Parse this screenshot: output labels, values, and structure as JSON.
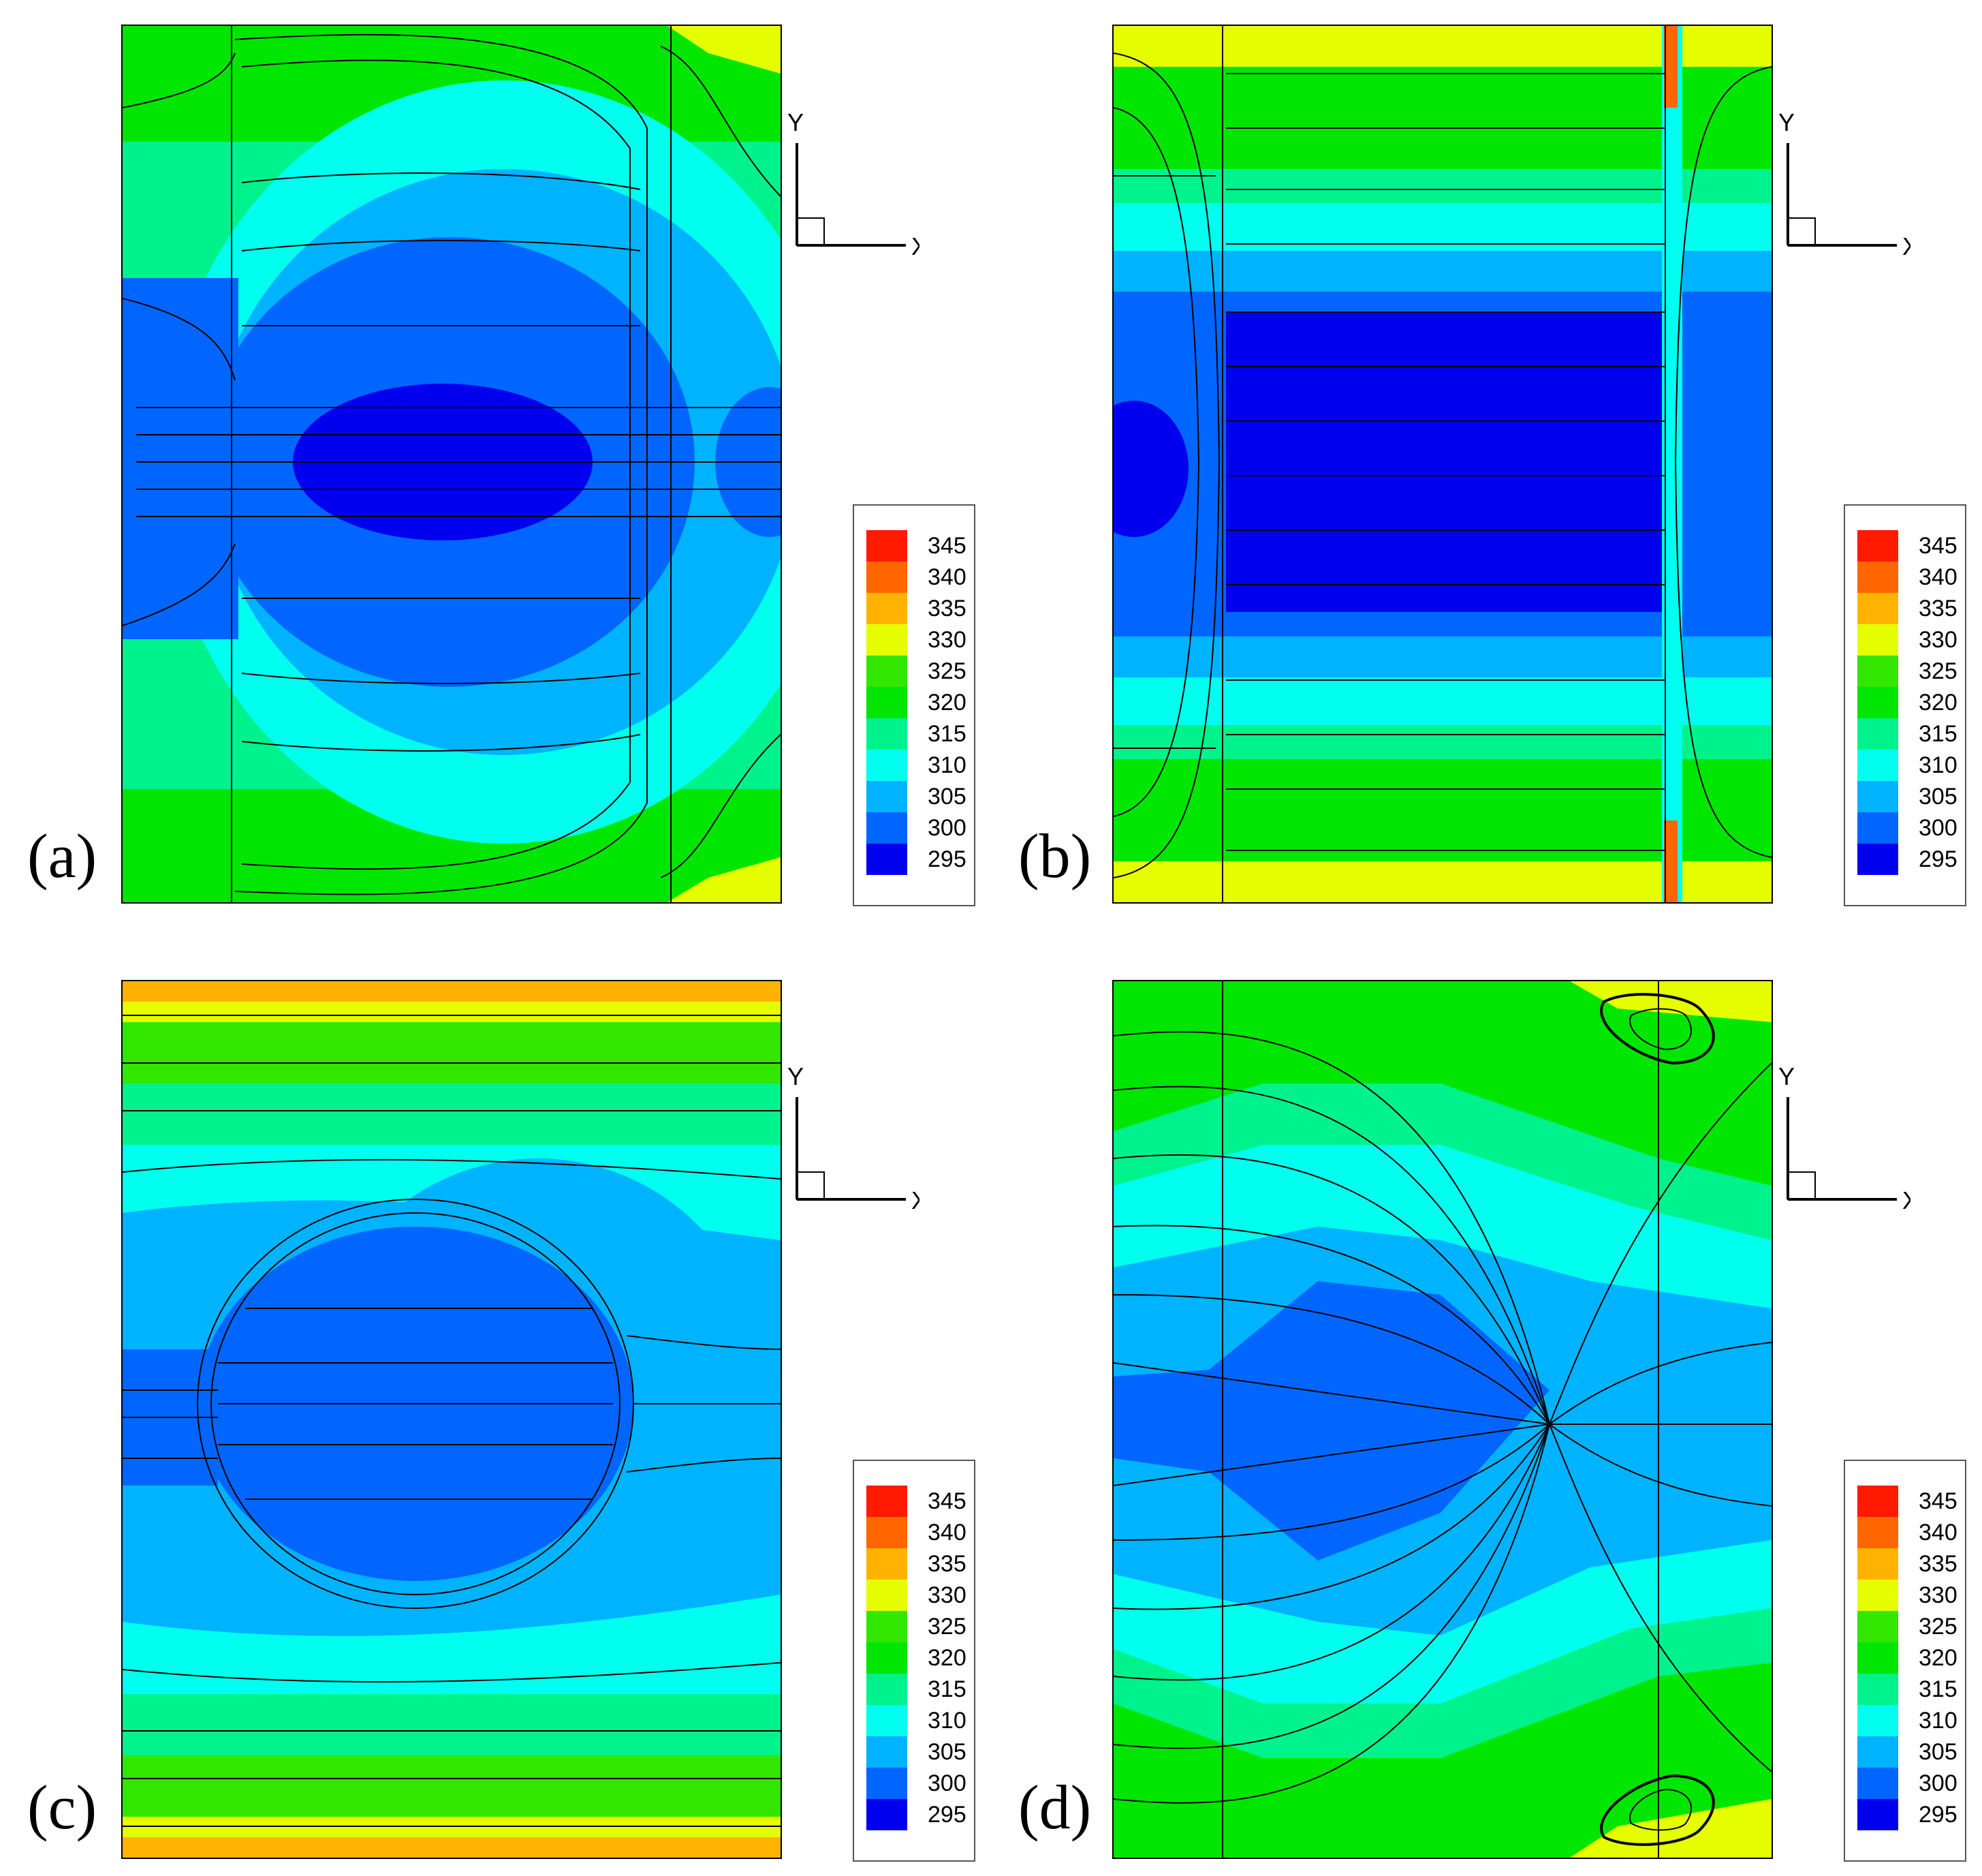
{
  "figure": {
    "panels": [
      {
        "id": "a",
        "label": "(a)",
        "axis_y": "Y",
        "axis_x": "X",
        "axis_z": "Z"
      },
      {
        "id": "b",
        "label": "(b)",
        "axis_y": "Y",
        "axis_x": "X",
        "axis_z": "Z"
      },
      {
        "id": "c",
        "label": "(c)",
        "axis_y": "Y",
        "axis_x": "X",
        "axis_z": "Z"
      },
      {
        "id": "d",
        "label": "(d)",
        "axis_y": "Y",
        "axis_x": "X",
        "axis_z": "Z"
      }
    ]
  },
  "legend": {
    "levels": [
      {
        "value": "345",
        "color": "#ff1a00"
      },
      {
        "value": "340",
        "color": "#ff6600"
      },
      {
        "value": "335",
        "color": "#ffb300"
      },
      {
        "value": "330",
        "color": "#e6ff00"
      },
      {
        "value": "325",
        "color": "#33e600"
      },
      {
        "value": "320",
        "color": "#00e600"
      },
      {
        "value": "315",
        "color": "#00f28c"
      },
      {
        "value": "310",
        "color": "#00ffee"
      },
      {
        "value": "305",
        "color": "#00b3ff"
      },
      {
        "value": "300",
        "color": "#0066ff"
      },
      {
        "value": "295",
        "color": "#0000ee"
      }
    ]
  }
}
